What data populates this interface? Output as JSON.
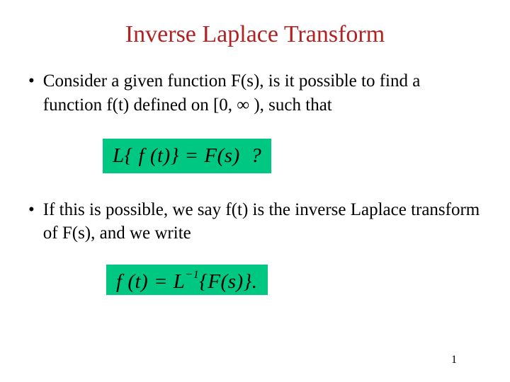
{
  "title": "Inverse Laplace Transform",
  "title_color": "#b22222",
  "title_fontsize": 34,
  "body_fontsize": 25,
  "body_color": "#000000",
  "background_color": "#ffffff",
  "formula_bg_color": "#00c882",
  "formula_fontsize": 29,
  "bullets": [
    {
      "text": "Consider a given function  F(s), is it possible to find a function f(t) defined on [0,  ∞ ),  such that"
    },
    {
      "text": "If this is possible, we say  f(t)  is the inverse Laplace transform of  F(s), and we write"
    }
  ],
  "formulas": [
    {
      "display": "L{ f (t)} = F(s)  ?"
    },
    {
      "display": "f (t) = L⁻¹{F(s)}."
    }
  ],
  "page_number": "1",
  "page_number_fontsize": 16
}
